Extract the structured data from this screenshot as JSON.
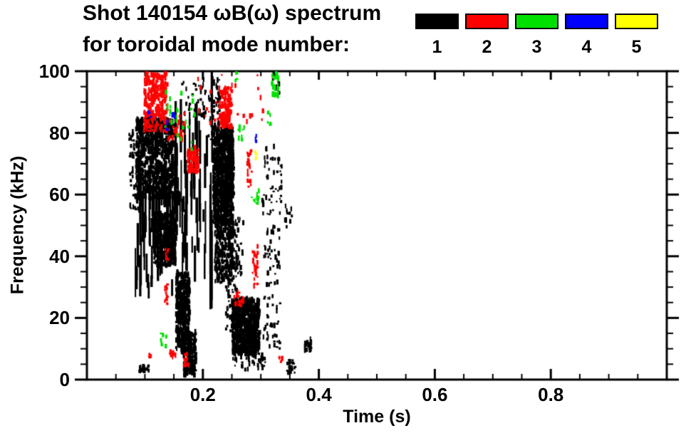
{
  "chart_data": {
    "type": "scatter",
    "title_line1": "Shot 140154 ωB(ω) spectrum",
    "title_line2": "for toroidal mode number:",
    "xlabel": "Time (s)",
    "ylabel": "Frequency (kHz)",
    "xlim": [
      0,
      1.0
    ],
    "ylim": [
      0,
      100
    ],
    "xticks": {
      "major": [
        0.2,
        0.4,
        0.6,
        0.8
      ],
      "labels": [
        "0.2",
        "0.4",
        "0.6",
        "0.8"
      ],
      "minor_step": 0.05
    },
    "yticks": {
      "major": [
        0,
        20,
        40,
        60,
        80,
        100
      ],
      "labels": [
        "0",
        "20",
        "40",
        "60",
        "80",
        "100"
      ],
      "minor_step": 5
    },
    "grid": false,
    "legend_position": "top-right",
    "legend_entries": [
      {
        "label": "1",
        "color": "#000000"
      },
      {
        "label": "2",
        "color": "#ff0000"
      },
      {
        "label": "3",
        "color": "#00e000"
      },
      {
        "label": "4",
        "color": "#0000ff"
      },
      {
        "label": "5",
        "color": "#ffff00"
      }
    ],
    "clusters": [
      {
        "mode": 1,
        "style": "dense",
        "t": [
          0.083,
          0.148
        ],
        "f": [
          58,
          84
        ],
        "n": 850
      },
      {
        "mode": 1,
        "style": "speck",
        "t": [
          0.071,
          0.092
        ],
        "f": [
          54,
          80
        ],
        "n": 70
      },
      {
        "mode": 1,
        "style": "streak",
        "t": [
          0.082,
          0.17
        ],
        "f": [
          26,
          58
        ],
        "n": 80
      },
      {
        "mode": 1,
        "style": "dense",
        "t": [
          0.114,
          0.152
        ],
        "f": [
          36,
          53
        ],
        "n": 320
      },
      {
        "mode": 1,
        "style": "dense",
        "t": [
          0.152,
          0.175
        ],
        "f": [
          8,
          34
        ],
        "n": 420
      },
      {
        "mode": 1,
        "style": "dense",
        "t": [
          0.165,
          0.187
        ],
        "f": [
          0.5,
          15
        ],
        "n": 200
      },
      {
        "mode": 1,
        "style": "streak",
        "t": [
          0.148,
          0.207
        ],
        "f": [
          30,
          78
        ],
        "n": 45
      },
      {
        "mode": 1,
        "style": "vline",
        "t": [
          0.211,
          0.215
        ],
        "f": [
          2,
          97
        ],
        "n": 7
      },
      {
        "mode": 1,
        "style": "speck",
        "t": [
          0.208,
          0.228
        ],
        "f": [
          77,
          97
        ],
        "n": 55
      },
      {
        "mode": 1,
        "style": "dense",
        "t": [
          0.216,
          0.251
        ],
        "f": [
          50,
          81
        ],
        "n": 850
      },
      {
        "mode": 1,
        "style": "dense",
        "t": [
          0.219,
          0.252
        ],
        "f": [
          31,
          50
        ],
        "n": 240
      },
      {
        "mode": 1,
        "style": "speck",
        "t": [
          0.252,
          0.268
        ],
        "f": [
          33,
          52
        ],
        "n": 35
      },
      {
        "mode": 1,
        "style": "dense",
        "t": [
          0.249,
          0.296
        ],
        "f": [
          7.5,
          25.5
        ],
        "n": 750
      },
      {
        "mode": 1,
        "style": "speck",
        "t": [
          0.237,
          0.258
        ],
        "f": [
          15,
          46
        ],
        "n": 80
      },
      {
        "mode": 1,
        "style": "speck",
        "t": [
          0.25,
          0.302
        ],
        "f": [
          2.5,
          7.5
        ],
        "n": 30
      },
      {
        "mode": 1,
        "style": "speck",
        "t": [
          0.303,
          0.332
        ],
        "f": [
          9,
          52
        ],
        "n": 80
      },
      {
        "mode": 1,
        "style": "speck",
        "t": [
          0.3,
          0.335
        ],
        "f": [
          53,
          75
        ],
        "n": 50
      },
      {
        "mode": 1,
        "style": "speck",
        "t": [
          0.186,
          0.205
        ],
        "f": [
          84,
          98
        ],
        "n": 22
      },
      {
        "mode": 1,
        "style": "speck",
        "t": [
          0.162,
          0.186
        ],
        "f": [
          80,
          96
        ],
        "n": 18
      },
      {
        "mode": 1,
        "style": "smalldense",
        "t": [
          0.088,
          0.105
        ],
        "f": [
          2,
          4
        ],
        "n": 28
      },
      {
        "mode": 1,
        "style": "smalldense",
        "t": [
          0.343,
          0.357
        ],
        "f": [
          1.5,
          6.5
        ],
        "n": 30
      },
      {
        "mode": 1,
        "style": "speck",
        "t": [
          0.374,
          0.386
        ],
        "f": [
          8.5,
          12.5
        ],
        "n": 20
      },
      {
        "mode": 1,
        "style": "speck",
        "t": [
          0.296,
          0.306
        ],
        "f": [
          3.5,
          7
        ],
        "n": 10
      },
      {
        "mode": 1,
        "style": "speck",
        "t": [
          0.318,
          0.33
        ],
        "f": [
          92,
          100
        ],
        "n": 10
      },
      {
        "mode": 1,
        "style": "speck",
        "t": [
          0.338,
          0.352
        ],
        "f": [
          48,
          56
        ],
        "n": 12
      },
      {
        "mode": 2,
        "style": "dense",
        "t": [
          0.097,
          0.136
        ],
        "f": [
          80,
          99
        ],
        "n": 270
      },
      {
        "mode": 2,
        "style": "speck",
        "t": [
          0.134,
          0.168
        ],
        "f": [
          77,
          88
        ],
        "n": 35
      },
      {
        "mode": 2,
        "style": "dense",
        "t": [
          0.172,
          0.191
        ],
        "f": [
          66.5,
          74.5
        ],
        "n": 90
      },
      {
        "mode": 2,
        "style": "dense",
        "t": [
          0.227,
          0.248
        ],
        "f": [
          81,
          94
        ],
        "n": 120
      },
      {
        "mode": 2,
        "style": "speck",
        "t": [
          0.19,
          0.305
        ],
        "f": [
          82,
          99
        ],
        "n": 30
      },
      {
        "mode": 2,
        "style": "speck",
        "t": [
          0.275,
          0.283
        ],
        "f": [
          62,
          76
        ],
        "n": 22
      },
      {
        "mode": 2,
        "style": "speck",
        "t": [
          0.284,
          0.293
        ],
        "f": [
          29,
          43
        ],
        "n": 26
      },
      {
        "mode": 2,
        "style": "speck",
        "t": [
          0.252,
          0.27
        ],
        "f": [
          22.5,
          28
        ],
        "n": 18
      },
      {
        "mode": 2,
        "style": "speck",
        "t": [
          0.141,
          0.152
        ],
        "f": [
          6,
          8.5
        ],
        "n": 12
      },
      {
        "mode": 2,
        "style": "smalldense",
        "t": [
          0.166,
          0.173
        ],
        "f": [
          4,
          8
        ],
        "n": 22
      },
      {
        "mode": 2,
        "style": "speck",
        "t": [
          0.105,
          0.111
        ],
        "f": [
          6,
          7.5
        ],
        "n": 4
      },
      {
        "mode": 2,
        "style": "speck",
        "t": [
          0.33,
          0.336
        ],
        "f": [
          5,
          7
        ],
        "n": 4
      },
      {
        "mode": 2,
        "style": "smalldense",
        "t": [
          0.133,
          0.138
        ],
        "f": [
          24,
          31
        ],
        "n": 16
      },
      {
        "mode": 2,
        "style": "speck",
        "t": [
          0.134,
          0.139
        ],
        "f": [
          38,
          42.5
        ],
        "n": 7
      },
      {
        "mode": 3,
        "style": "speck",
        "t": [
          0.128,
          0.187
        ],
        "f": [
          74,
          93
        ],
        "n": 26
      },
      {
        "mode": 3,
        "style": "speck",
        "t": [
          0.258,
          0.272
        ],
        "f": [
          77,
          82
        ],
        "n": 10
      },
      {
        "mode": 3,
        "style": "speck",
        "t": [
          0.283,
          0.296
        ],
        "f": [
          56,
          61
        ],
        "n": 10
      },
      {
        "mode": 3,
        "style": "dense",
        "t": [
          0.317,
          0.328
        ],
        "f": [
          91,
          99.5
        ],
        "n": 30
      },
      {
        "mode": 3,
        "style": "speck",
        "t": [
          0.309,
          0.316
        ],
        "f": [
          82,
          87
        ],
        "n": 7
      },
      {
        "mode": 3,
        "style": "speck",
        "t": [
          0.124,
          0.136
        ],
        "f": [
          10,
          15.5
        ],
        "n": 9
      },
      {
        "mode": 3,
        "style": "speck",
        "t": [
          0.252,
          0.258
        ],
        "f": [
          96,
          100
        ],
        "n": 5
      },
      {
        "mode": 4,
        "style": "speck",
        "t": [
          0.104,
          0.11
        ],
        "f": [
          84,
          87
        ],
        "n": 4
      },
      {
        "mode": 4,
        "style": "speck",
        "t": [
          0.133,
          0.139
        ],
        "f": [
          80,
          82.5
        ],
        "n": 3
      },
      {
        "mode": 4,
        "style": "speck",
        "t": [
          0.145,
          0.151
        ],
        "f": [
          84,
          86.5
        ],
        "n": 4
      },
      {
        "mode": 4,
        "style": "speck",
        "t": [
          0.287,
          0.292
        ],
        "f": [
          76,
          78.5
        ],
        "n": 3
      },
      {
        "mode": 5,
        "style": "speck",
        "t": [
          0.288,
          0.293
        ],
        "f": [
          71,
          73.5
        ],
        "n": 4
      }
    ]
  }
}
